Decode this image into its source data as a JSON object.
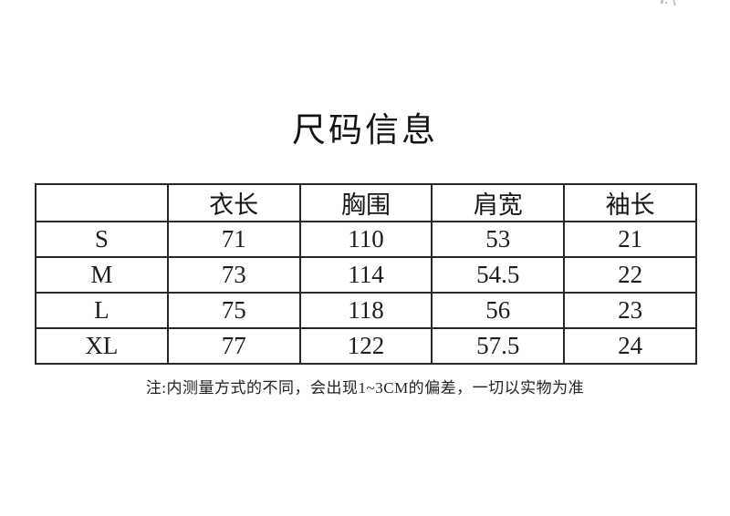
{
  "title": "尺码信息",
  "table": {
    "headers": [
      "",
      "衣长",
      "胸围",
      "肩宽",
      "袖长"
    ],
    "rows": [
      {
        "size": "S",
        "values": [
          "71",
          "110",
          "53",
          "21"
        ]
      },
      {
        "size": "M",
        "values": [
          "73",
          "114",
          "54.5",
          "22"
        ]
      },
      {
        "size": "L",
        "values": [
          "75",
          "118",
          "56",
          "23"
        ]
      },
      {
        "size": "XL",
        "values": [
          "77",
          "122",
          "57.5",
          "24"
        ]
      }
    ]
  },
  "note": "注:内测量方式的不同，会出现1~3CM的偏差，一切以实物为准",
  "icons": {
    "corner_artifact": "faint-cropped-text-mark"
  },
  "colors": {
    "background": "#ffffff",
    "text": "#1c1c1c",
    "border": "#282828"
  }
}
